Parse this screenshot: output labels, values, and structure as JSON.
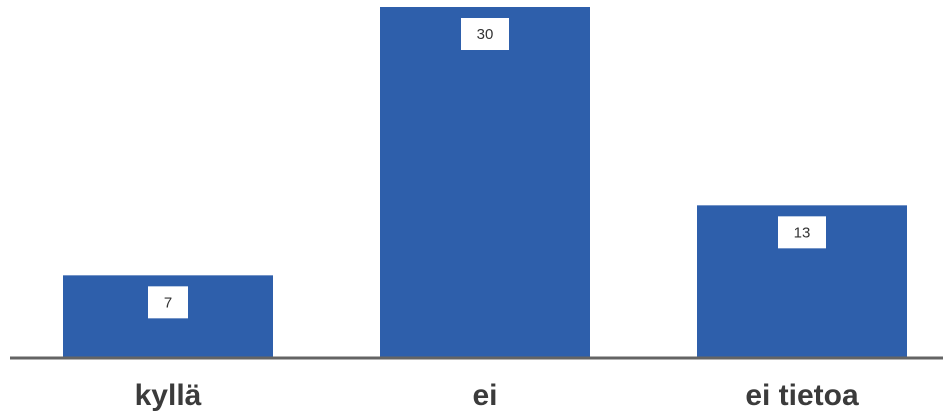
{
  "chart_data": {
    "type": "bar",
    "categories": [
      "kyllä",
      "ei",
      "ei tietoa"
    ],
    "values": [
      7,
      30,
      13
    ],
    "data_labels": [
      "7",
      "30",
      "13"
    ],
    "title": "",
    "xlabel": "",
    "ylabel": "",
    "ylim": [
      0,
      30
    ],
    "grid": false,
    "legend": "none",
    "colors": {
      "bar": "#2E5FAB",
      "axis": "#646464",
      "label_box": "#ffffff",
      "label_text": "#333333",
      "category_text": "#3b3b3b"
    }
  }
}
